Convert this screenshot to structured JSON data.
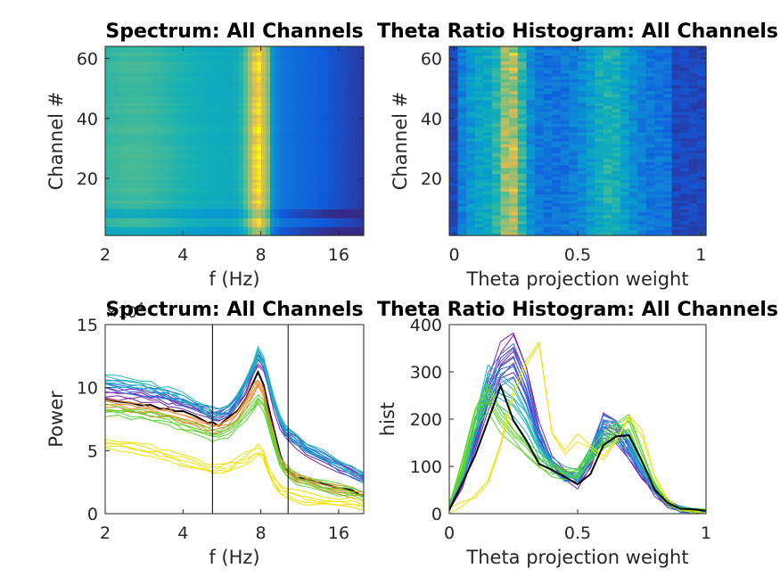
{
  "chart_data": [
    {
      "type": "heatmap",
      "title": "Spectrum: All Channels",
      "xlabel": "f (Hz)",
      "ylabel": "Channel #",
      "x_scale": "log2",
      "xlim": [
        2,
        20
      ],
      "ylim": [
        1,
        64
      ],
      "xticks": [
        2,
        4,
        8,
        16
      ],
      "yticks": [
        20,
        40,
        60
      ],
      "ytick_labels": [
        "20",
        "40",
        "60"
      ],
      "xtick_labels": [
        "2",
        "4",
        "8",
        "16"
      ],
      "colormap": "parula",
      "peak_frequency_hz": 7.8,
      "note_bands": "Bright yellow band at ~7-8.5 Hz across all channels; weaker yellow at 2-4 Hz; blue above ~10 Hz."
    },
    {
      "type": "heatmap",
      "title": "Theta Ratio Histogram: All Channels",
      "xlabel": "Theta projection weight",
      "ylabel": "Channel #",
      "xlim": [
        -0.02,
        1.02
      ],
      "ylim": [
        1,
        64
      ],
      "xticks": [
        0,
        0.5,
        1
      ],
      "xtick_labels": [
        "0",
        "0.5",
        "1"
      ],
      "yticks": [
        20,
        40,
        60
      ],
      "ytick_labels": [
        "20",
        "40",
        "60"
      ],
      "colormap": "parula",
      "bins": 30
    },
    {
      "type": "line",
      "title": "Spectrum: All Channels",
      "xlabel": "f (Hz)",
      "ylabel": "Power",
      "x_scale": "log2",
      "xlim": [
        2,
        20
      ],
      "ylim": [
        0,
        15
      ],
      "xticks": [
        2,
        4,
        8,
        16
      ],
      "xtick_labels": [
        "2",
        "4",
        "8",
        "16"
      ],
      "yticks": [
        0,
        5,
        10,
        15
      ],
      "ytick_labels": [
        "0",
        "5",
        "10",
        "15"
      ],
      "y_exponent_label": "×10",
      "y_exponent_power": "4",
      "vlines": [
        5.2,
        10.2
      ],
      "x": [
        2.0,
        2.25,
        2.5,
        2.75,
        3.0,
        3.25,
        3.5,
        3.75,
        4.0,
        4.5,
        5.0,
        5.2,
        5.5,
        6.0,
        6.5,
        7.0,
        7.5,
        7.8,
        8.2,
        8.5,
        9.0,
        9.5,
        10.0,
        11.0,
        12.0,
        14.0,
        16.0,
        18.0,
        20.0
      ],
      "series": [
        {
          "color": "#7e1fa8",
          "values": [
            9.6,
            9.5,
            9.4,
            9.3,
            9.2,
            9.1,
            9.0,
            8.8,
            8.6,
            8.3,
            7.9,
            7.7,
            7.6,
            8.0,
            8.8,
            10.0,
            11.3,
            12.2,
            11.8,
            10.5,
            8.6,
            7.2,
            6.3,
            5.6,
            5.0,
            4.3,
            3.7,
            3.2,
            2.7
          ]
        },
        {
          "color": "#2a6de0",
          "values": [
            10.2,
            10.0,
            9.9,
            9.8,
            9.7,
            9.5,
            9.3,
            9.1,
            8.9,
            8.5,
            8.1,
            7.9,
            7.8,
            8.2,
            9.0,
            10.3,
            11.6,
            12.6,
            12.0,
            10.7,
            8.8,
            7.4,
            6.5,
            5.8,
            5.2,
            4.5,
            3.8,
            3.3,
            2.8
          ]
        },
        {
          "color": "#1fb5c0",
          "values": [
            10.6,
            10.5,
            10.3,
            10.2,
            10.0,
            9.8,
            9.6,
            9.4,
            9.1,
            8.7,
            8.2,
            8.0,
            7.9,
            8.3,
            9.1,
            10.4,
            11.8,
            12.8,
            12.1,
            10.8,
            8.9,
            7.5,
            6.6,
            5.9,
            5.3,
            4.6,
            3.9,
            3.4,
            2.9
          ]
        },
        {
          "color": "#000000",
          "values": [
            9.0,
            8.9,
            8.8,
            8.7,
            8.6,
            8.5,
            8.4,
            8.2,
            8.0,
            7.7,
            7.3,
            7.1,
            7.1,
            7.5,
            8.2,
            9.3,
            10.4,
            11.2,
            10.3,
            8.9,
            6.5,
            4.6,
            3.6,
            3.0,
            2.6,
            2.2,
            1.9,
            1.7,
            1.5
          ]
        },
        {
          "color": "#f08020",
          "values": [
            8.6,
            8.5,
            8.4,
            8.3,
            8.2,
            8.0,
            7.9,
            7.7,
            7.5,
            7.2,
            6.9,
            6.8,
            6.8,
            7.2,
            7.8,
            8.8,
            9.8,
            10.4,
            9.6,
            8.0,
            5.9,
            4.2,
            3.4,
            2.9,
            2.6,
            2.2,
            1.9,
            1.7,
            1.5
          ]
        },
        {
          "color": "#5cd62a",
          "values": [
            8.2,
            8.1,
            8.0,
            7.9,
            7.7,
            7.6,
            7.4,
            7.2,
            7.0,
            6.7,
            6.3,
            6.2,
            6.2,
            6.5,
            7.1,
            7.8,
            8.6,
            9.1,
            8.6,
            7.4,
            5.6,
            4.1,
            3.3,
            2.8,
            2.5,
            2.2,
            1.9,
            1.7,
            1.5
          ]
        },
        {
          "color": "#f2e000",
          "values": [
            5.6,
            5.4,
            5.3,
            5.1,
            5.0,
            4.8,
            4.6,
            4.4,
            4.2,
            3.9,
            3.6,
            3.5,
            3.5,
            3.7,
            4.0,
            4.4,
            4.8,
            5.0,
            4.6,
            3.7,
            2.6,
            1.9,
            1.6,
            1.4,
            1.2,
            1.0,
            0.9,
            0.8,
            0.7
          ]
        }
      ]
    },
    {
      "type": "line",
      "title": "Theta Ratio Histogram: All Channels",
      "xlabel": "Theta projection weight",
      "ylabel": "hist",
      "xlim": [
        0,
        1
      ],
      "ylim": [
        0,
        400
      ],
      "xticks": [
        0,
        0.5,
        1
      ],
      "xtick_labels": [
        "0",
        "0.5",
        "1"
      ],
      "yticks": [
        0,
        100,
        200,
        300,
        400
      ],
      "ytick_labels": [
        "0",
        "100",
        "200",
        "300",
        "400"
      ],
      "x": [
        0.0,
        0.05,
        0.1,
        0.15,
        0.2,
        0.25,
        0.3,
        0.35,
        0.4,
        0.45,
        0.5,
        0.55,
        0.6,
        0.65,
        0.7,
        0.75,
        0.8,
        0.85,
        0.9,
        0.95,
        1.0
      ],
      "series": [
        {
          "color": "#7e1fa8",
          "values": [
            10,
            60,
            150,
            250,
            320,
            345,
            280,
            170,
            110,
            85,
            65,
            110,
            185,
            175,
            130,
            85,
            45,
            20,
            10,
            5,
            5
          ]
        },
        {
          "color": "#2a6de0",
          "values": [
            12,
            70,
            160,
            260,
            300,
            320,
            260,
            160,
            105,
            80,
            70,
            120,
            190,
            180,
            140,
            90,
            50,
            22,
            10,
            5,
            5
          ]
        },
        {
          "color": "#1fb5c0",
          "values": [
            15,
            80,
            180,
            280,
            260,
            240,
            200,
            140,
            100,
            85,
            80,
            125,
            170,
            175,
            150,
            100,
            55,
            25,
            10,
            5,
            5
          ]
        },
        {
          "color": "#5cd62a",
          "values": [
            18,
            95,
            200,
            250,
            200,
            170,
            140,
            110,
            95,
            85,
            85,
            120,
            150,
            175,
            190,
            120,
            60,
            25,
            10,
            5,
            5
          ]
        },
        {
          "color": "#f2e000",
          "values": [
            5,
            20,
            40,
            70,
            140,
            260,
            320,
            360,
            170,
            130,
            160,
            140,
            120,
            150,
            200,
            170,
            80,
            30,
            10,
            5,
            5
          ]
        },
        {
          "color": "#000000",
          "values": [
            10,
            70,
            120,
            200,
            270,
            200,
            150,
            110,
            95,
            80,
            60,
            90,
            140,
            160,
            165,
            110,
            55,
            20,
            8,
            5,
            5
          ]
        }
      ]
    }
  ]
}
